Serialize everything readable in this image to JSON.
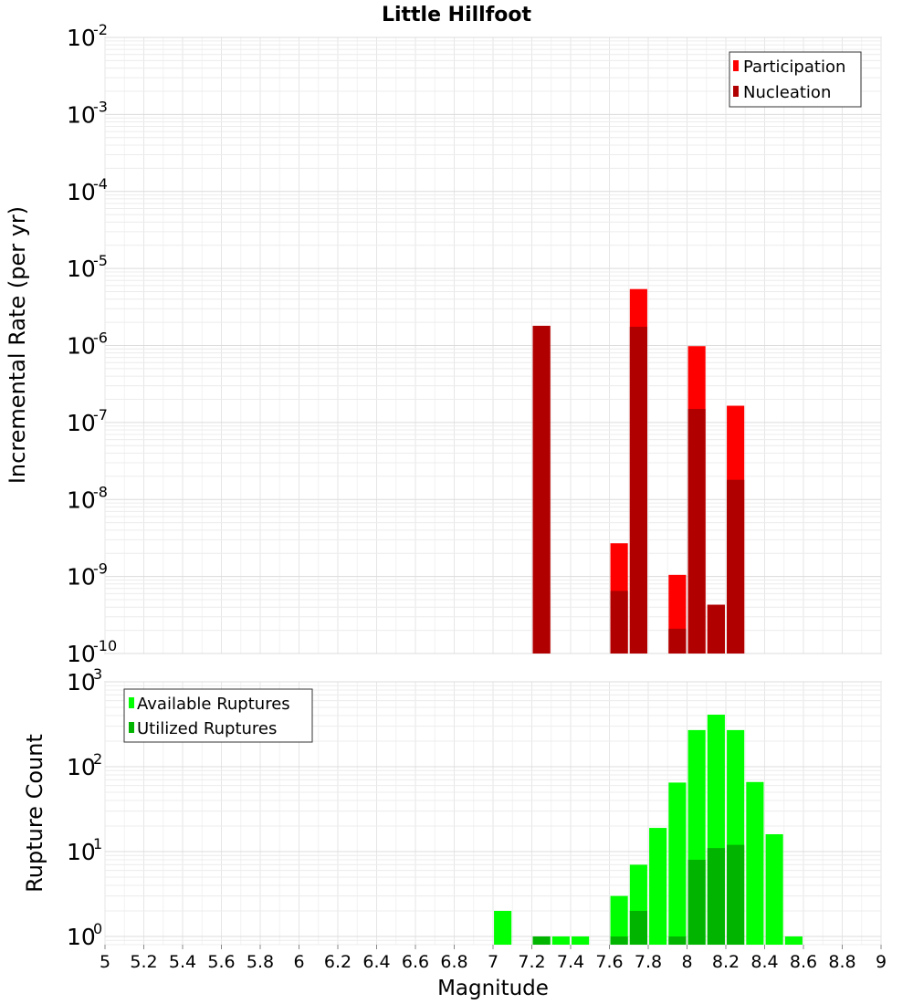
{
  "chart_data": [
    {
      "type": "bar",
      "title": "Little Hillfoot",
      "xlabel": "",
      "ylabel": "Incremental Rate (per yr)",
      "y_scale": "log",
      "xlim": [
        5,
        9
      ],
      "ylim": [
        1e-10,
        0.01
      ],
      "y_tick_exponents": [
        "-10",
        "-9",
        "-8",
        "-7",
        "-6",
        "-5",
        "-4",
        "-3",
        "-2"
      ],
      "y_tick_base": "10",
      "bar_width": 0.09,
      "grid": true,
      "legend_position": "top-right",
      "series": [
        {
          "name": "Participation",
          "color": "#ff0000",
          "x": [
            7.25,
            7.65,
            7.75,
            7.95,
            8.05,
            8.15,
            8.25
          ],
          "values": [
            1.8e-06,
            2.7e-09,
            5.4e-06,
            1.05e-09,
            9.8e-07,
            4.3e-10,
            1.65e-07
          ]
        },
        {
          "name": "Nucleation",
          "color": "#b00000",
          "x": [
            7.25,
            7.65,
            7.75,
            7.95,
            8.05,
            8.15,
            8.25
          ],
          "values": [
            1.8e-06,
            6.5e-10,
            1.75e-06,
            2.1e-10,
            1.5e-07,
            4.3e-10,
            1.8e-08
          ]
        }
      ]
    },
    {
      "type": "bar",
      "title": "",
      "xlabel": "Magnitude",
      "ylabel": "Rupture Count",
      "y_scale": "log",
      "xlim": [
        5,
        9
      ],
      "ylim": [
        0.8,
        1000
      ],
      "y_tick_exponents": [
        "0",
        "1",
        "2",
        "3"
      ],
      "y_tick_base": "10",
      "x_ticks": [
        "5",
        "5.2",
        "5.4",
        "5.6",
        "5.8",
        "6",
        "6.2",
        "6.4",
        "6.6",
        "6.8",
        "7",
        "7.2",
        "7.4",
        "7.6",
        "7.8",
        "8",
        "8.2",
        "8.4",
        "8.6",
        "8.8",
        "9"
      ],
      "bar_width": 0.09,
      "grid": true,
      "legend_position": "top-left",
      "series": [
        {
          "name": "Available Ruptures",
          "color": "#00ff00",
          "x": [
            7.05,
            7.25,
            7.35,
            7.45,
            7.65,
            7.75,
            7.85,
            7.95,
            8.05,
            8.15,
            8.25,
            8.35,
            8.45,
            8.55
          ],
          "values": [
            2,
            1,
            1,
            1,
            3,
            7,
            19,
            65,
            270,
            410,
            270,
            66,
            16,
            1
          ]
        },
        {
          "name": "Utilized Ruptures",
          "color": "#00b400",
          "x": [
            7.25,
            7.65,
            7.75,
            7.95,
            8.05,
            8.15,
            8.25
          ],
          "values": [
            1,
            1,
            2,
            1,
            8,
            11,
            12
          ]
        }
      ]
    }
  ]
}
